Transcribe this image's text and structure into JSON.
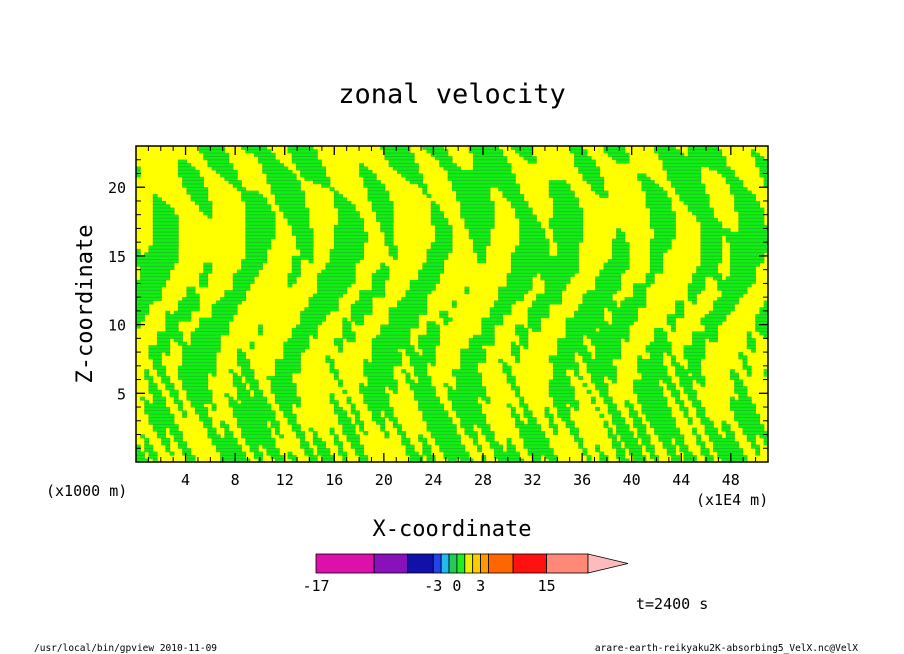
{
  "chart_data": {
    "type": "heatmap",
    "title": "zonal velocity",
    "xlabel": "X-coordinate",
    "ylabel": "Z-coordinate",
    "x_unit_left": "(x1000 m)",
    "x_unit_right": "(x1E4 m)",
    "xlim": [
      0,
      51
    ],
    "ylim": [
      0,
      23
    ],
    "x_ticks": [
      4,
      8,
      12,
      16,
      20,
      24,
      28,
      32,
      36,
      40,
      44,
      48
    ],
    "y_ticks": [
      5,
      10,
      15,
      20
    ],
    "time_label": "t=2400 s",
    "colorbar": {
      "levels": [
        -17,
        -13,
        -8,
        -3,
        -2,
        -1,
        0,
        1,
        2,
        3,
        5,
        10,
        15
      ],
      "colors": [
        "#dd11aa",
        "#8811bb",
        "#1111aa",
        "#2244ee",
        "#22bbee",
        "#22cc55",
        "#22ee22",
        "#eeee00",
        "#ffcc00",
        "#ff9900",
        "#ff6600",
        "#ff1111",
        "#ff8877",
        "#ffbbbb"
      ],
      "label_values": [
        -17,
        -3,
        0,
        3,
        15
      ],
      "labels": [
        "-17",
        "-3",
        "0",
        "3",
        "15"
      ]
    },
    "fill_colors": {
      "positive": "#ffff00",
      "negative": "#11ee11",
      "contour": "#444466"
    }
  },
  "footer": {
    "left": "/usr/local/bin/gpview  2010-11-09",
    "right": "arare-earth-reikyaku2K-absorbing5_VelX.nc@VelX"
  }
}
